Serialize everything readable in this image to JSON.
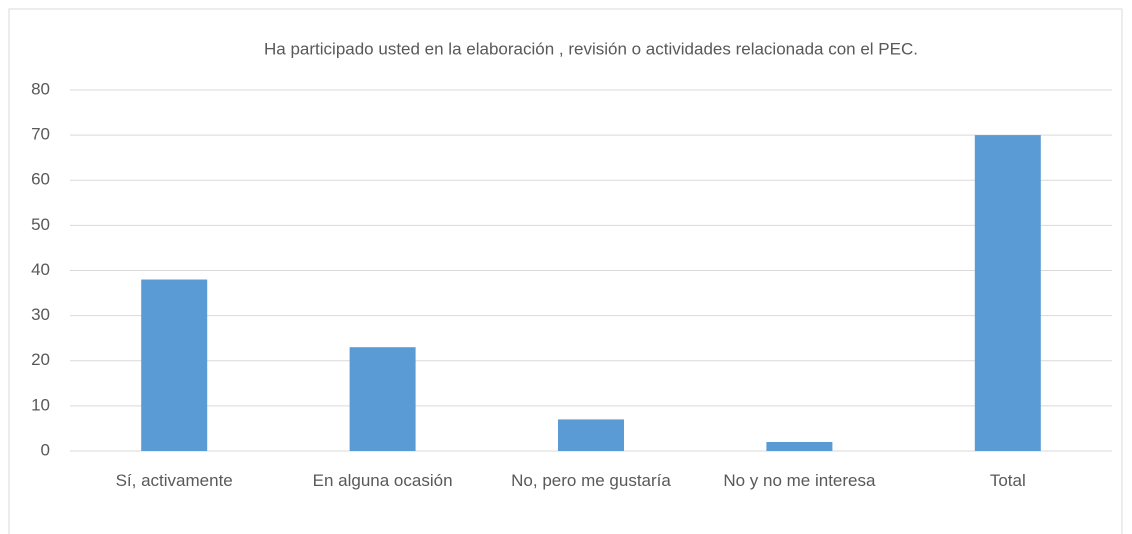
{
  "chart_data": {
    "type": "bar",
    "title": "Ha participado usted en la elaboración , revisión o actividades relacionada con el PEC.",
    "categories": [
      "Sí, activamente",
      "En alguna ocasión",
      "No, pero me gustaría",
      "No y no me interesa",
      "Total"
    ],
    "values": [
      38,
      23,
      7,
      2,
      70
    ],
    "color": "#5b9bd5",
    "ylim": [
      0,
      80
    ],
    "yticks": [
      0,
      10,
      20,
      30,
      40,
      50,
      60,
      70,
      80
    ],
    "grid": true
  }
}
